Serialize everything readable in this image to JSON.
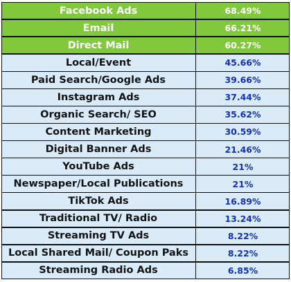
{
  "chart_data": {
    "type": "table",
    "rows": [
      {
        "label": "Facebook Ads",
        "value": "68.49%"
      },
      {
        "label": "Email",
        "value": "66.21%"
      },
      {
        "label": "Direct Mail",
        "value": "60.27%"
      },
      {
        "label": "Local/Event",
        "value": "45.66%"
      },
      {
        "label": "Paid Search/Google Ads",
        "value": "39.66%"
      },
      {
        "label": "Instagram Ads",
        "value": "37.44%"
      },
      {
        "label": "Organic Search/ SEO",
        "value": "35.62%"
      },
      {
        "label": "Content Marketing",
        "value": "30.59%"
      },
      {
        "label": "Digital Banner Ads",
        "value": "21.46%"
      },
      {
        "label": "YouTube Ads",
        "value": "21%"
      },
      {
        "label": "Newspaper/Local Publications",
        "value": "21%"
      },
      {
        "label": "TikTok Ads",
        "value": "16.89%"
      },
      {
        "label": "Traditional TV/ Radio",
        "value": "13.24%"
      },
      {
        "label": "Streaming TV Ads",
        "value": "8.22%"
      },
      {
        "label": "Local Shared Mail/ Coupon Paks",
        "value": "8.22%"
      },
      {
        "label": "Streaming Radio Ads",
        "value": "6.85%"
      }
    ],
    "highlight_count": 3,
    "colors": {
      "highlight_bg": "#82c83d",
      "row_bg": "#d9eaf9",
      "value_text": "#1530b8",
      "border": "#0d0d0d"
    }
  }
}
